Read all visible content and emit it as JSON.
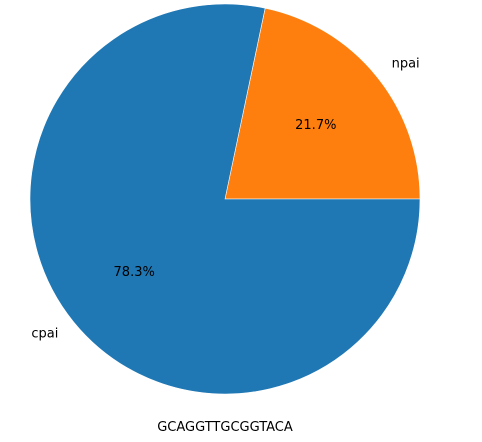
{
  "chart_data": {
    "type": "pie",
    "title": "",
    "xlabel": "GCAGGTTGCGGTACA",
    "slices": [
      {
        "label": "npai",
        "value": 21.7,
        "pct_label": "21.7%",
        "color": "#ff7f0e"
      },
      {
        "label": "cpai",
        "value": 78.3,
        "pct_label": "78.3%",
        "color": "#1f77b4"
      }
    ],
    "start_angle_deg": 0,
    "direction": "counterclockwise"
  }
}
